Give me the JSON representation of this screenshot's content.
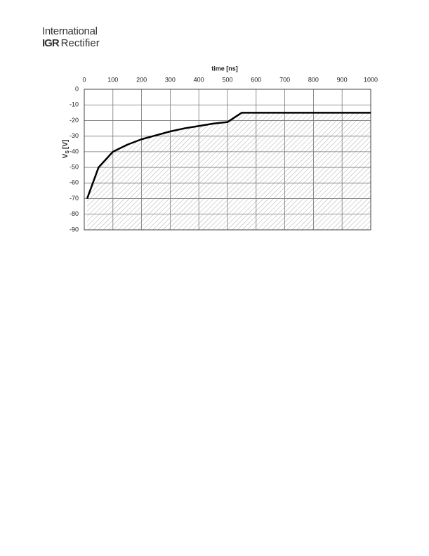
{
  "header": {
    "line1": "International",
    "logo": "IGR",
    "line2": "Rectifier"
  },
  "chart_data": {
    "type": "line",
    "x_label": "time [ns]",
    "y_label": {
      "symbol": "V",
      "subscript": "S",
      "unit": "[V]"
    },
    "x": [
      10,
      50,
      100,
      150,
      200,
      250,
      300,
      350,
      400,
      450,
      500,
      550,
      1000
    ],
    "series": [
      {
        "color": "#000000",
        "values": [
          -70,
          -50,
          -40,
          -35.5,
          -32,
          -29.5,
          -27,
          -25,
          -23.5,
          -22,
          -21,
          -15,
          -15
        ]
      }
    ],
    "xlim": [
      0,
      1000
    ],
    "xticks": [
      0,
      100,
      200,
      300,
      400,
      500,
      600,
      700,
      800,
      900,
      1000
    ],
    "ylim": [
      -90,
      0
    ],
    "yticks": [
      0,
      -10,
      -20,
      -30,
      -40,
      -50,
      -60,
      -70,
      -80,
      -90
    ],
    "grid": true,
    "fill_below": true
  }
}
